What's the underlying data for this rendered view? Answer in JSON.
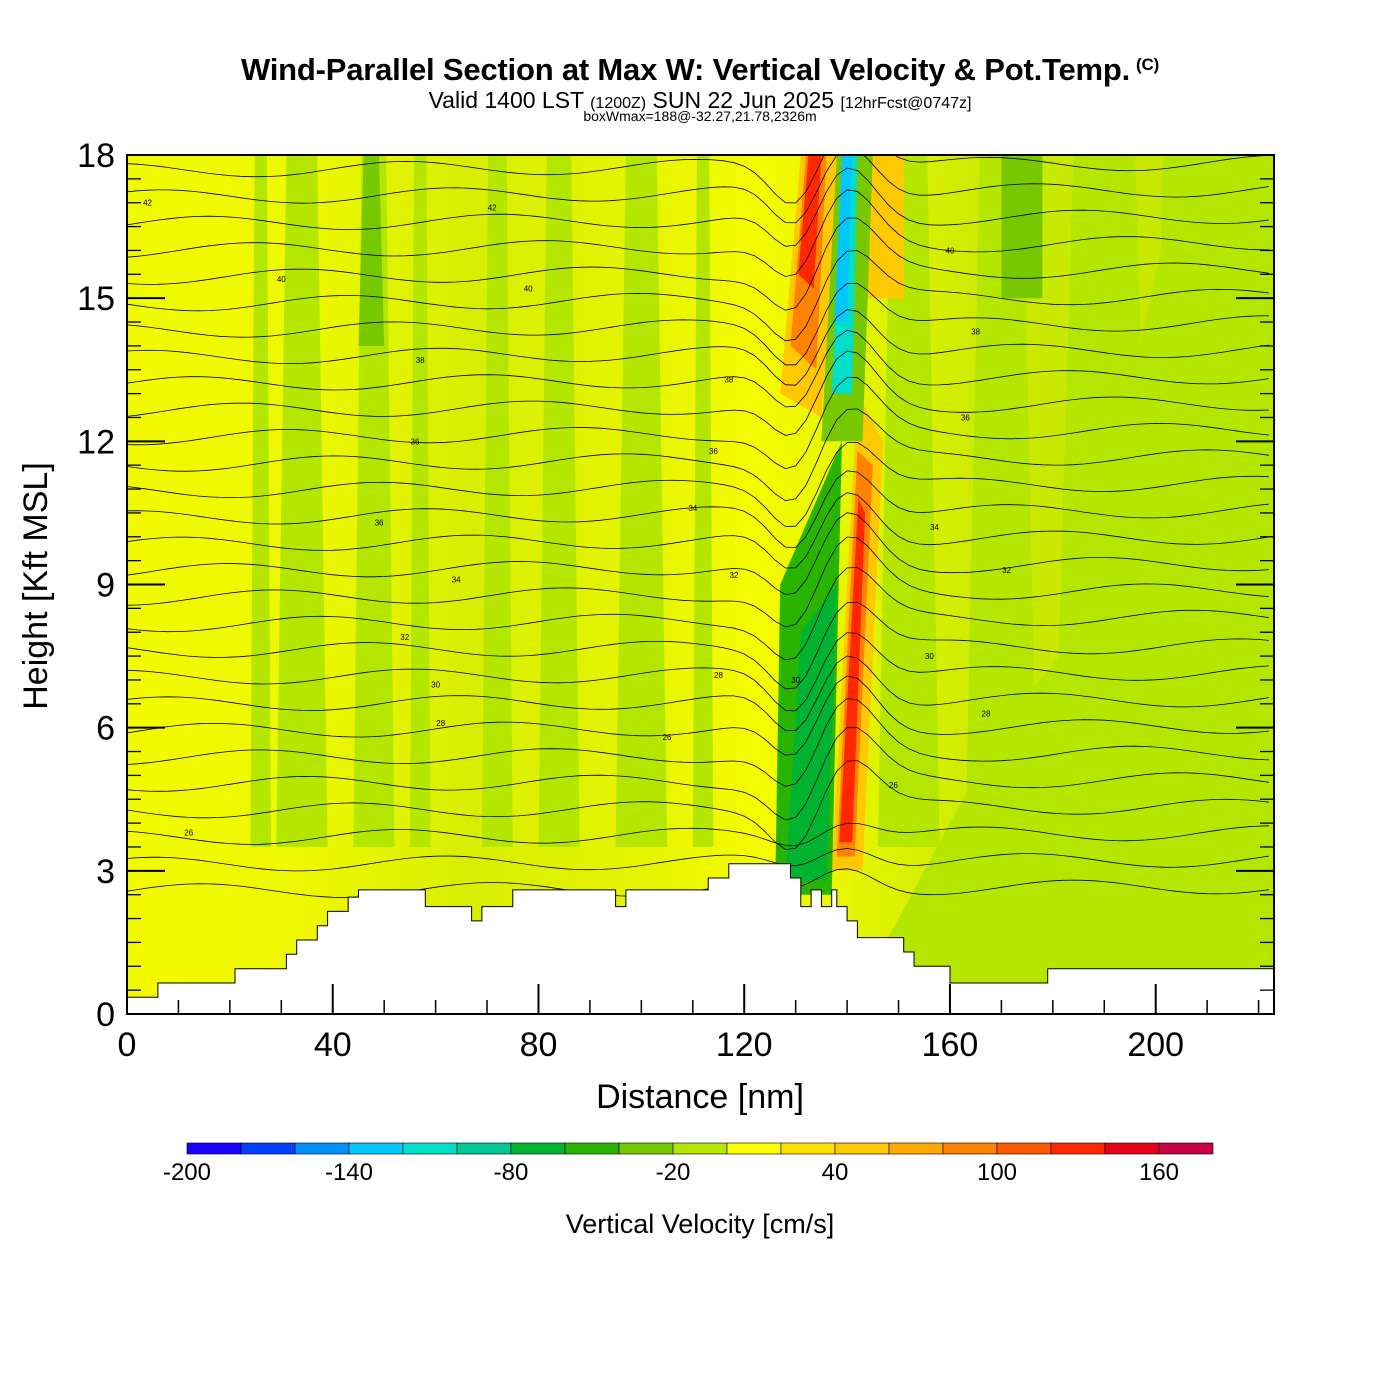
{
  "header": {
    "title": "Wind-Parallel Section at Max W: Vertical Velocity & Pot.Temp.",
    "copyright": "(C)",
    "valid_prefix": "Valid 1400 LST",
    "valid_utc": "(1200Z)",
    "valid_date": "SUN 22 Jun 2025",
    "forecast": "[12hrFcst@0747z]",
    "box_info": "boxWmax=188@-32.27,21.78,2326m"
  },
  "chart_data": {
    "type": "heatmap",
    "xlabel": "Distance [nm]",
    "ylabel": "Height [Kft MSL]",
    "xlim": [
      0,
      223
    ],
    "ylim": [
      0,
      18
    ],
    "x_ticks": [
      0,
      40,
      80,
      120,
      160,
      200
    ],
    "y_ticks": [
      0,
      3,
      6,
      9,
      12,
      15,
      18
    ],
    "colorbar": {
      "title": "Vertical Velocity [cm/s]",
      "levels": [
        -200,
        -180,
        -160,
        -140,
        -120,
        -100,
        -80,
        -60,
        -40,
        -20,
        0,
        20,
        40,
        60,
        80,
        100,
        120,
        140,
        160,
        180
      ],
      "colors": [
        "#1a00ff",
        "#0040ff",
        "#0090ff",
        "#00c8ff",
        "#00e0c8",
        "#00c896",
        "#00b432",
        "#28b400",
        "#78c800",
        "#b4e600",
        "#ffff00",
        "#ffe100",
        "#ffc800",
        "#ffaa00",
        "#ff8200",
        "#ff5a00",
        "#ff2800",
        "#e6001e",
        "#c80046"
      ],
      "tick_labels": [
        "-200",
        "-140",
        "-80",
        "-20",
        "40",
        "100",
        "160"
      ]
    },
    "terrain_kft": [
      [
        0,
        0.35
      ],
      [
        6,
        0.35
      ],
      [
        6,
        0.65
      ],
      [
        21,
        0.65
      ],
      [
        21,
        0.95
      ],
      [
        31,
        0.95
      ],
      [
        31,
        1.25
      ],
      [
        33,
        1.25
      ],
      [
        33,
        1.55
      ],
      [
        37,
        1.55
      ],
      [
        37,
        1.85
      ],
      [
        39,
        1.85
      ],
      [
        39,
        2.15
      ],
      [
        43,
        2.15
      ],
      [
        43,
        2.45
      ],
      [
        45,
        2.45
      ],
      [
        45,
        2.6
      ],
      [
        58,
        2.6
      ],
      [
        58,
        2.25
      ],
      [
        67,
        2.25
      ],
      [
        67,
        1.95
      ],
      [
        69,
        1.95
      ],
      [
        69,
        2.25
      ],
      [
        75,
        2.25
      ],
      [
        75,
        2.6
      ],
      [
        95,
        2.6
      ],
      [
        95,
        2.25
      ],
      [
        97,
        2.25
      ],
      [
        97,
        2.6
      ],
      [
        113,
        2.6
      ],
      [
        113,
        2.85
      ],
      [
        117,
        2.85
      ],
      [
        117,
        3.15
      ],
      [
        129,
        3.15
      ],
      [
        129,
        2.85
      ],
      [
        131,
        2.85
      ],
      [
        131,
        2.25
      ],
      [
        133,
        2.25
      ],
      [
        133,
        2.6
      ],
      [
        135,
        2.6
      ],
      [
        135,
        2.25
      ],
      [
        137,
        2.25
      ],
      [
        137,
        2.6
      ],
      [
        138,
        2.6
      ],
      [
        138,
        2.25
      ],
      [
        140,
        2.25
      ],
      [
        140,
        1.95
      ],
      [
        142,
        1.95
      ],
      [
        142,
        1.6
      ],
      [
        151,
        1.6
      ],
      [
        151,
        1.3
      ],
      [
        153,
        1.3
      ],
      [
        153,
        1.0
      ],
      [
        160,
        1.0
      ],
      [
        160,
        0.65
      ],
      [
        179,
        0.65
      ],
      [
        179,
        0.95
      ],
      [
        223,
        0.95
      ]
    ],
    "theta_contours": {
      "label_values": [
        "42",
        "42",
        "40",
        "40",
        "40",
        "38",
        "38",
        "38",
        "36",
        "36",
        "36",
        "36",
        "34",
        "34",
        "34",
        "32",
        "32",
        "32",
        "30",
        "30",
        "30",
        "28",
        "28",
        "28",
        "26",
        "26",
        "26",
        "24"
      ]
    },
    "grid": false
  }
}
